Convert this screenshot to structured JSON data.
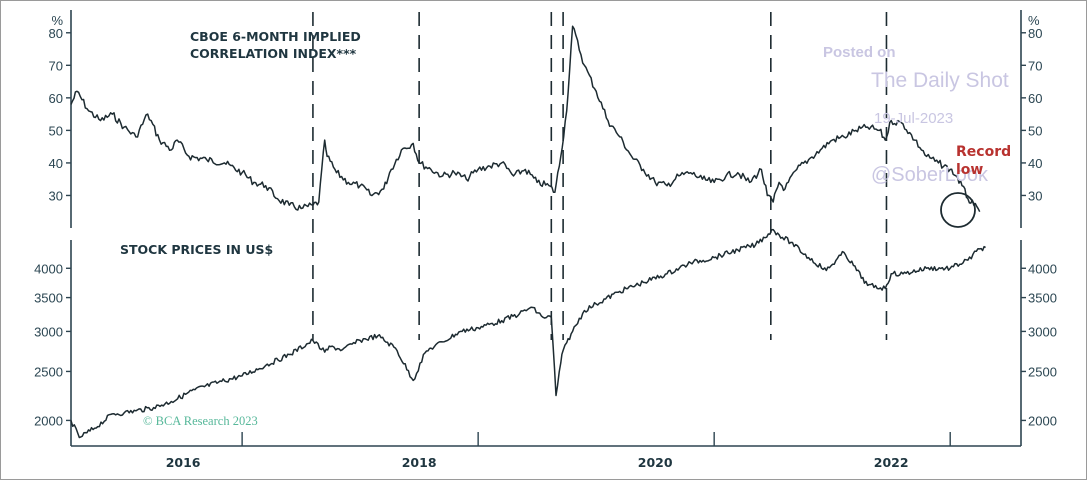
{
  "chart_data": [
    {
      "type": "line",
      "title_lines": [
        "CBOE 6-MONTH IMPLIED",
        "CORRELATION INDEX***"
      ],
      "unit": "%",
      "yticks": [
        30,
        40,
        50,
        60,
        70,
        80
      ],
      "ylim": [
        20,
        87
      ],
      "xlim": [
        2015.55,
        2023.6
      ],
      "series": [
        {
          "x": [
            2015.55,
            2015.6,
            2015.7,
            2015.8,
            2015.9,
            2016.0,
            2016.1,
            2016.2,
            2016.3,
            2016.4,
            2016.45,
            2016.55,
            2016.7,
            2016.85,
            2017.0,
            2017.1,
            2017.2,
            2017.3,
            2017.4,
            2017.5,
            2017.6,
            2017.65,
            2017.7,
            2017.72,
            2017.8,
            2017.9,
            2018.0,
            2018.1,
            2018.2,
            2018.25,
            2018.35,
            2018.45,
            2018.5,
            2018.6,
            2018.7,
            2018.8,
            2018.9,
            2019.0,
            2019.1,
            2019.2,
            2019.3,
            2019.4,
            2019.5,
            2019.6,
            2019.65,
            2019.7,
            2019.75,
            2019.8,
            2019.9,
            2020.0,
            2020.1,
            2020.2,
            2020.3,
            2020.4,
            2020.5,
            2020.6,
            2020.7,
            2020.8,
            2020.9,
            2021.0,
            2021.1,
            2021.2,
            2021.3,
            2021.4,
            2021.45,
            2021.5,
            2021.55,
            2021.6,
            2021.7,
            2021.8,
            2021.9,
            2022.0,
            2022.1,
            2022.2,
            2022.3,
            2022.4,
            2022.45,
            2022.5,
            2022.6,
            2022.7,
            2022.8,
            2022.9,
            2023.0,
            2023.05,
            2023.1,
            2023.15,
            2023.2,
            2023.25
          ],
          "y": [
            58,
            62,
            56,
            53,
            55,
            51,
            48,
            55,
            47,
            44,
            47,
            42,
            41,
            40,
            37,
            34,
            33,
            29,
            27,
            26,
            27,
            28,
            47,
            42,
            37,
            34,
            33,
            30,
            32,
            37,
            44,
            46,
            40,
            38,
            36,
            37,
            35,
            38,
            39,
            40,
            36,
            38,
            34,
            33,
            31,
            42,
            56,
            82,
            70,
            62,
            53,
            48,
            42,
            38,
            34,
            33,
            36,
            37,
            35,
            34,
            36,
            37,
            34,
            38,
            30,
            28,
            34,
            32,
            38,
            41,
            44,
            47,
            48,
            50,
            51,
            50,
            47,
            53,
            52,
            47,
            42,
            40,
            38,
            36,
            33,
            29,
            27,
            25
          ]
        }
      ]
    },
    {
      "type": "line",
      "title": "STOCK PRICES IN US$",
      "scale": "log",
      "yticks": [
        2000,
        2500,
        3000,
        3500,
        4000
      ],
      "ylim": [
        1780,
        4550
      ],
      "xlim": [
        2015.55,
        2023.6
      ],
      "xticks": [
        "2016",
        "2018",
        "2020",
        "2022"
      ],
      "series": [
        {
          "x": [
            2015.55,
            2015.62,
            2015.75,
            2015.9,
            2016.0,
            2016.1,
            2016.25,
            2016.4,
            2016.6,
            2016.8,
            2017.0,
            2017.2,
            2017.4,
            2017.6,
            2017.7,
            2017.75,
            2017.85,
            2018.0,
            2018.15,
            2018.3,
            2018.45,
            2018.55,
            2018.6,
            2018.7,
            2018.85,
            2019.0,
            2019.2,
            2019.35,
            2019.45,
            2019.55,
            2019.62,
            2019.66,
            2019.7,
            2019.72,
            2019.75,
            2019.8,
            2019.9,
            2020.0,
            2020.2,
            2020.4,
            2020.6,
            2020.8,
            2021.0,
            2021.2,
            2021.35,
            2021.5,
            2021.55,
            2021.65,
            2021.8,
            2021.95,
            2022.1,
            2022.3,
            2022.45,
            2022.5,
            2022.6,
            2022.8,
            2023.0,
            2023.15,
            2023.25,
            2023.3
          ],
          "y": [
            2000,
            1850,
            1930,
            2060,
            2070,
            2090,
            2120,
            2180,
            2300,
            2380,
            2450,
            2570,
            2700,
            2880,
            2730,
            2800,
            2760,
            2880,
            2940,
            2780,
            2400,
            2720,
            2780,
            2860,
            3000,
            3050,
            3150,
            3250,
            3350,
            3200,
            3200,
            2240,
            2600,
            2750,
            2850,
            3000,
            3300,
            3400,
            3600,
            3750,
            3900,
            4100,
            4200,
            4350,
            4450,
            4770,
            4660,
            4500,
            4200,
            3960,
            4300,
            3700,
            3650,
            3900,
            3900,
            4000,
            4000,
            4150,
            4370,
            4400
          ]
        }
      ]
    }
  ],
  "events": [
    2017.6,
    2018.5,
    2019.62,
    2019.72,
    2021.48,
    2022.46
  ],
  "annotation": {
    "line1": "Record",
    "line2": "low"
  },
  "copyright": "© BCA Research 2023",
  "watermark": {
    "posted": "Posted on",
    "site": "The Daily Shot",
    "date": "19-Jul-2023",
    "handle": "@SoberLook"
  },
  "colors": {
    "line": "#1d2b31",
    "axis": "#2d4450",
    "record": "#b8322f",
    "copyright": "#57b89a"
  }
}
